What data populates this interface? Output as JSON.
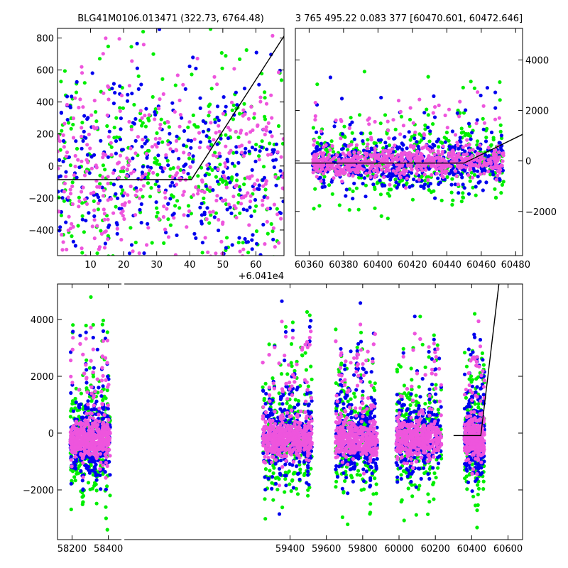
{
  "chart_data": [
    {
      "type": "scatter",
      "panel": "top-left",
      "title": "BLG41M0106.013471 (322.73, 6764.48)",
      "x_offset_label": "+6.041e4",
      "xlim": [
        0,
        68.5
      ],
      "ylim": [
        -560,
        860
      ],
      "xticks": [
        10,
        20,
        30,
        40,
        50,
        60
      ],
      "yticks": [
        -400,
        -200,
        0,
        200,
        400,
        600,
        800
      ],
      "xtick_labels": [
        "10",
        "20",
        "30",
        "40",
        "50",
        "60"
      ],
      "ytick_labels": [
        "−400",
        "−200",
        "0",
        "200",
        "400",
        "600",
        "800"
      ],
      "y_axis_side": "left",
      "series": [
        {
          "color": "#00ee00",
          "point_count": 330
        },
        {
          "color": "#0000ee",
          "point_count": 330
        },
        {
          "color": "#ee55dd",
          "point_count": 400
        }
      ],
      "model_line": {
        "x": [
          0,
          40.5,
          70
        ],
        "y": [
          -85,
          -85,
          860
        ]
      }
    },
    {
      "type": "scatter",
      "panel": "top-right",
      "title": "3 765 495.22 0.083 377 [60470.601, 60472.646]",
      "xlim": [
        60352,
        60484
      ],
      "ylim": [
        -3750,
        5250
      ],
      "xticks": [
        60360,
        60380,
        60400,
        60420,
        60440,
        60460,
        60480
      ],
      "yticks": [
        -2000,
        0,
        2000,
        4000
      ],
      "xtick_labels": [
        "60360",
        "60380",
        "60400",
        "60420",
        "60440",
        "60460",
        "60480"
      ],
      "ytick_labels": [
        "−2000",
        "0",
        "2000",
        "4000"
      ],
      "y_axis_side": "right",
      "series": [
        {
          "color": "#00ee00",
          "point_count": 420
        },
        {
          "color": "#0000ee",
          "point_count": 520
        },
        {
          "color": "#ee55dd",
          "point_count": 650
        }
      ],
      "model_line": {
        "x": [
          60352,
          60450,
          60484
        ],
        "y": [
          -85,
          -85,
          1050
        ]
      }
    },
    {
      "type": "scatter",
      "panel": "bottom",
      "xlim": [
        58120,
        60680
      ],
      "ylim": [
        -3750,
        5250
      ],
      "xticks": [
        58200,
        58400,
        59400,
        59600,
        59800,
        60000,
        60200,
        60400,
        60600
      ],
      "yticks": [
        -2000,
        0,
        2000,
        4000
      ],
      "xtick_labels": [
        "58200",
        "58400",
        "59400",
        "59600",
        "59800",
        "60000",
        "60200",
        "60400",
        "60600"
      ],
      "ytick_labels": [
        "−2000",
        "0",
        "2000",
        "4000"
      ],
      "y_axis_side": "left",
      "broken_x_axis": true,
      "seasons": [
        {
          "x_range": [
            58190,
            58410
          ],
          "weight": 1.0
        },
        {
          "x_range": [
            59250,
            59520
          ],
          "weight": 1.1
        },
        {
          "x_range": [
            59650,
            59880
          ],
          "weight": 1.0
        },
        {
          "x_range": [
            59985,
            60235
          ],
          "weight": 1.0
        },
        {
          "x_range": [
            60360,
            60470
          ],
          "weight": 0.7
        }
      ],
      "series": [
        {
          "color": "#00ee00",
          "point_count": 1100
        },
        {
          "color": "#0000ee",
          "point_count": 1500
        },
        {
          "color": "#ee55dd",
          "point_count": 3000
        }
      ],
      "model_line": {
        "x": [
          60300,
          60450,
          60550
        ],
        "y": [
          -85,
          -85,
          5250
        ]
      }
    }
  ]
}
